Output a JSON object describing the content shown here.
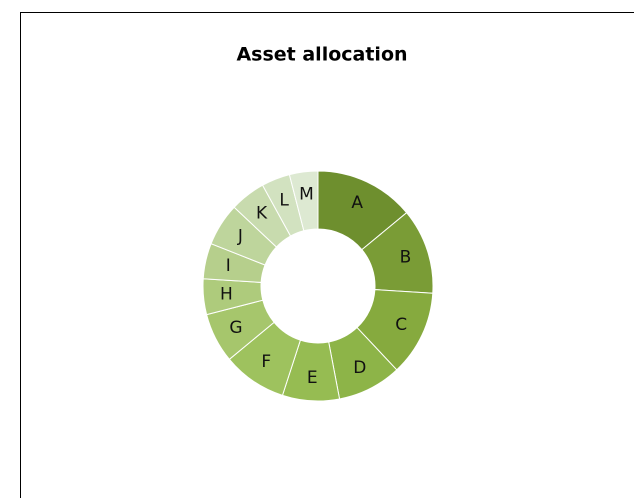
{
  "chart_data": {
    "type": "donut",
    "title": "Asset allocation",
    "categories": [
      "A",
      "B",
      "C",
      "D",
      "E",
      "F",
      "G",
      "H",
      "I",
      "J",
      "K",
      "L",
      "M"
    ],
    "values": [
      14,
      12,
      12,
      9,
      8,
      9,
      7,
      5,
      5,
      6,
      5,
      4,
      4
    ],
    "colors": [
      "#6e8f2e",
      "#7a9c36",
      "#86aa3e",
      "#8db448",
      "#96bc52",
      "#9ec25e",
      "#a6c66c",
      "#aecb7c",
      "#b6cf8c",
      "#bed59c",
      "#c8dbae",
      "#d2e2c0",
      "#dde9d2"
    ]
  }
}
